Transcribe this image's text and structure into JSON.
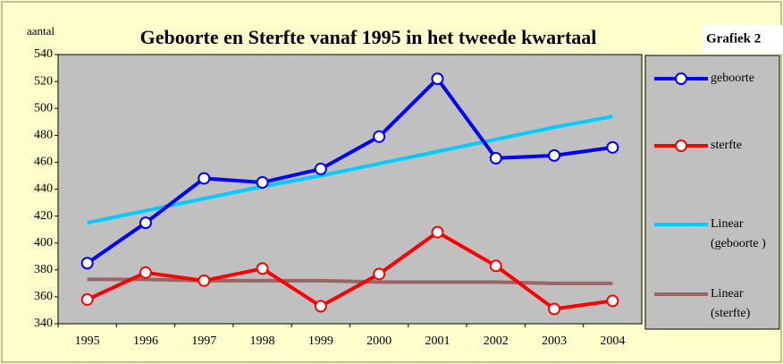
{
  "chart_data": {
    "type": "line",
    "title": "Geboorte en Sterfte vanaf 1995 in het tweede kwartaal",
    "label": "Grafiek 2",
    "y_label": "aantal",
    "categories": [
      "1995",
      "1996",
      "1997",
      "1998",
      "1999",
      "2000",
      "2001",
      "2002",
      "2003",
      "2004"
    ],
    "series": [
      {
        "name": "geboorte",
        "color": "#0000ff",
        "markers": true,
        "values": [
          385,
          415,
          448,
          445,
          455,
          479,
          522,
          463,
          465,
          471
        ]
      },
      {
        "name": "sterfte",
        "color": "#ff0000",
        "markers": true,
        "values": [
          358,
          378,
          372,
          381,
          353,
          377,
          408,
          383,
          351,
          357
        ]
      },
      {
        "name": "Linear (geboorte )",
        "color": "#00ccff",
        "markers": false,
        "values": [
          415,
          424,
          433,
          442,
          450,
          459,
          468,
          477,
          486,
          494
        ]
      },
      {
        "name": "Linear (sterfte)",
        "color": "#996666",
        "markers": false,
        "values": [
          373,
          373,
          372,
          372,
          372,
          371,
          371,
          371,
          370,
          370
        ]
      }
    ],
    "ylim": [
      340,
      540
    ],
    "yticks": [
      340,
      360,
      380,
      400,
      420,
      440,
      460,
      480,
      500,
      520,
      540
    ],
    "grid": false
  }
}
